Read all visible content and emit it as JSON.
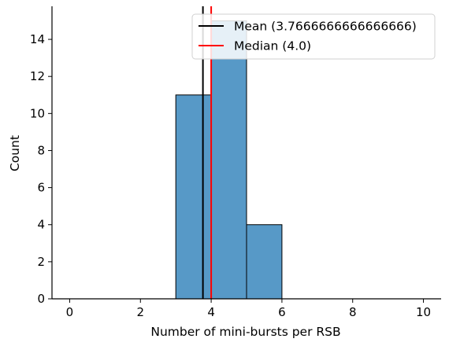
{
  "chart_data": {
    "type": "bar",
    "title": "",
    "xlabel": "Number of mini-bursts per RSB",
    "ylabel": "Count",
    "xlim": [
      -0.5,
      10.5
    ],
    "ylim": [
      0,
      15.7
    ],
    "xticks": [
      0,
      2,
      4,
      6,
      8,
      10
    ],
    "yticks": [
      0,
      2,
      4,
      6,
      8,
      10,
      12,
      14
    ],
    "grid": false,
    "bins": [
      {
        "x0": 0,
        "x1": 1,
        "count": 0
      },
      {
        "x0": 1,
        "x1": 2,
        "count": 0
      },
      {
        "x0": 2,
        "x1": 3,
        "count": 0
      },
      {
        "x0": 3,
        "x1": 4,
        "count": 11
      },
      {
        "x0": 4,
        "x1": 5,
        "count": 15
      },
      {
        "x0": 5,
        "x1": 6,
        "count": 4
      },
      {
        "x0": 6,
        "x1": 7,
        "count": 0
      },
      {
        "x0": 7,
        "x1": 8,
        "count": 0
      },
      {
        "x0": 8,
        "x1": 9,
        "count": 0
      },
      {
        "x0": 9,
        "x1": 10,
        "count": 0
      }
    ],
    "bar_color": "#5799c7",
    "vlines": [
      {
        "name": "Mean (3.7666666666666666)",
        "x": 3.7666666666666666,
        "color": "#000000"
      },
      {
        "name": "Median (4.0)",
        "x": 4.0,
        "color": "#ff0000"
      }
    ],
    "legend_position": "top-right"
  }
}
